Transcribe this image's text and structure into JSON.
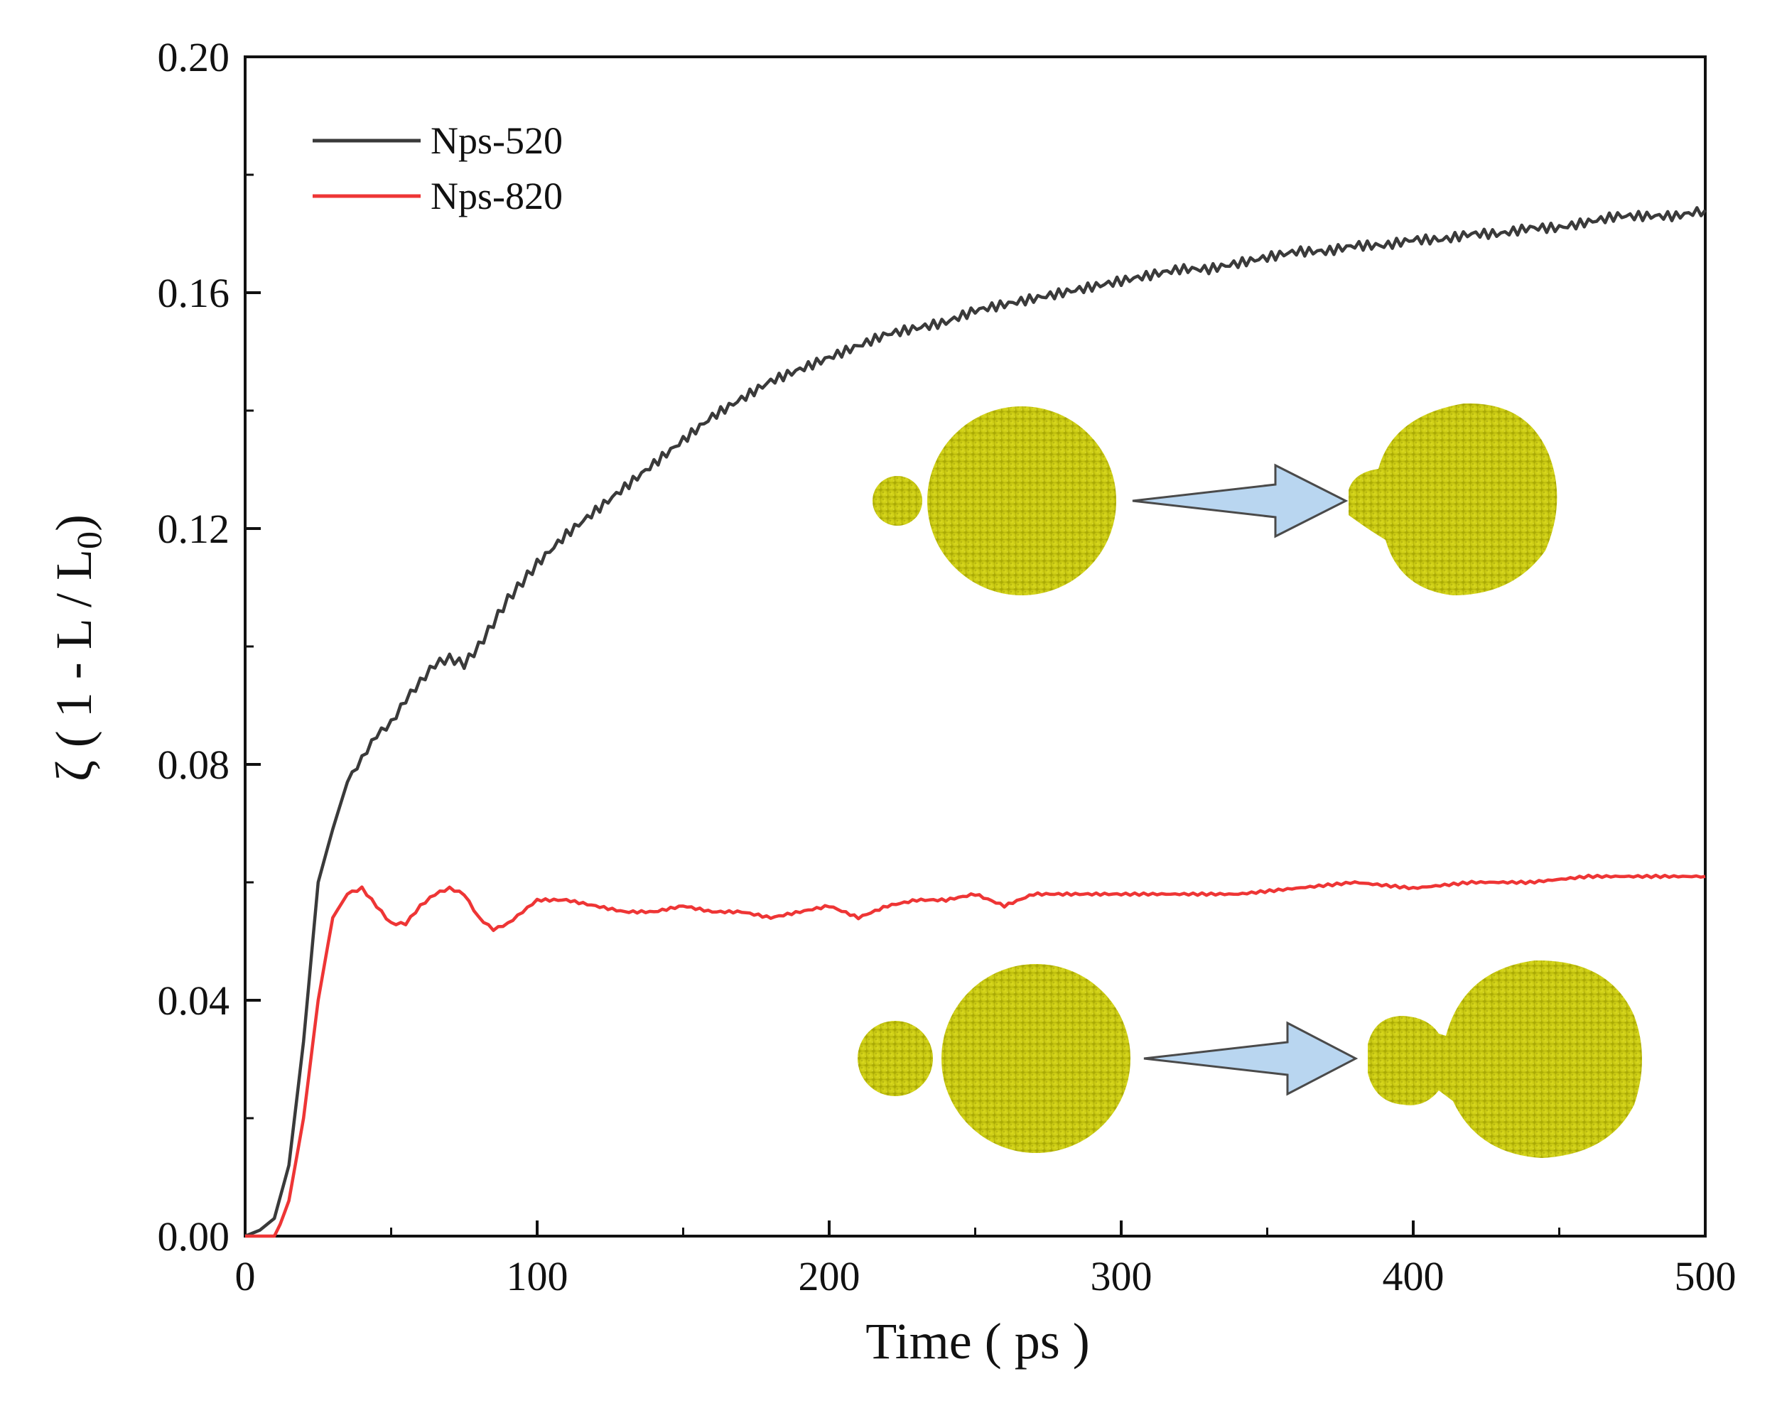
{
  "chart_data": {
    "type": "line",
    "xlabel": "Time ( ps )",
    "ylabel": {
      "main": "ζ ( 1 - L / L",
      "subscript": "0",
      "close": ")"
    },
    "xlim": [
      0,
      500
    ],
    "ylim": [
      0,
      0.2
    ],
    "xticks": [
      0,
      100,
      200,
      300,
      400,
      500
    ],
    "xtick_labels": [
      "0",
      "100",
      "200",
      "300",
      "400",
      "500"
    ],
    "yticks": [
      0,
      0.04,
      0.08,
      0.12,
      0.16,
      0.2
    ],
    "ytick_labels": [
      "0.00",
      "0.04",
      "0.08",
      "0.12",
      "0.16",
      "0.20"
    ],
    "legend_position": "top-left",
    "series": [
      {
        "name": "Nps-520",
        "color": "#3a3a3a",
        "x": [
          0,
          5,
          10,
          15,
          20,
          25,
          30,
          35,
          40,
          45,
          50,
          55,
          60,
          65,
          70,
          75,
          80,
          85,
          90,
          95,
          100,
          110,
          120,
          130,
          140,
          150,
          160,
          170,
          180,
          190,
          200,
          210,
          220,
          230,
          240,
          250,
          260,
          270,
          280,
          290,
          300,
          310,
          320,
          330,
          340,
          350,
          360,
          370,
          380,
          390,
          400,
          410,
          420,
          430,
          440,
          450,
          460,
          470,
          480,
          490,
          500
        ],
        "y": [
          0,
          0.001,
          0.003,
          0.012,
          0.033,
          0.06,
          0.069,
          0.077,
          0.081,
          0.085,
          0.087,
          0.091,
          0.094,
          0.097,
          0.098,
          0.097,
          0.1,
          0.104,
          0.108,
          0.111,
          0.114,
          0.119,
          0.123,
          0.127,
          0.131,
          0.135,
          0.139,
          0.142,
          0.145,
          0.147,
          0.149,
          0.151,
          0.153,
          0.154,
          0.155,
          0.157,
          0.158,
          0.159,
          0.16,
          0.161,
          0.162,
          0.163,
          0.164,
          0.164,
          0.165,
          0.166,
          0.167,
          0.167,
          0.168,
          0.168,
          0.169,
          0.169,
          0.17,
          0.17,
          0.171,
          0.171,
          0.172,
          0.173,
          0.173,
          0.173,
          0.174
        ]
      },
      {
        "name": "Nps-820",
        "color": "#ee3535",
        "x": [
          0,
          5,
          8,
          10,
          12,
          15,
          20,
          25,
          30,
          35,
          40,
          45,
          50,
          55,
          60,
          65,
          70,
          75,
          80,
          85,
          90,
          95,
          100,
          110,
          120,
          130,
          140,
          150,
          160,
          170,
          180,
          190,
          200,
          210,
          220,
          230,
          240,
          250,
          260,
          270,
          280,
          290,
          300,
          320,
          340,
          360,
          380,
          400,
          420,
          440,
          460,
          480,
          500
        ],
        "y": [
          0,
          0,
          0,
          0,
          0.002,
          0.006,
          0.02,
          0.04,
          0.054,
          0.058,
          0.059,
          0.056,
          0.053,
          0.053,
          0.056,
          0.058,
          0.059,
          0.058,
          0.054,
          0.052,
          0.053,
          0.055,
          0.057,
          0.057,
          0.056,
          0.055,
          0.055,
          0.056,
          0.055,
          0.055,
          0.054,
          0.055,
          0.056,
          0.054,
          0.056,
          0.057,
          0.057,
          0.058,
          0.056,
          0.058,
          0.058,
          0.058,
          0.058,
          0.058,
          0.058,
          0.059,
          0.06,
          0.059,
          0.06,
          0.06,
          0.061,
          0.061,
          0.061
        ]
      }
    ]
  },
  "insets": [
    {
      "label": "Nps-520 coalescence schematic"
    },
    {
      "label": "Nps-820 coalescence schematic"
    }
  ]
}
